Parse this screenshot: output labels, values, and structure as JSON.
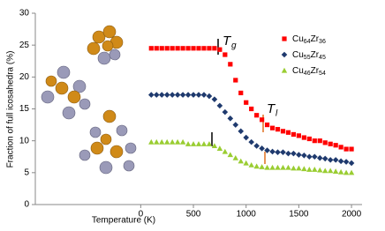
{
  "chart_data": {
    "type": "scatter",
    "xlabel": "Temperature (K)",
    "ylabel": "Fraction of full icosahedra (%)",
    "xlim": [
      -1000,
      2100
    ],
    "ylim": [
      0,
      30
    ],
    "xticks": [
      0,
      500,
      1000,
      1500,
      2000
    ],
    "yticks": [
      0,
      5,
      10,
      15,
      20,
      25,
      30
    ],
    "annotations": [
      {
        "text": "T",
        "sub": "g"
      },
      {
        "text": "T",
        "sub": "l"
      }
    ],
    "x": [
      100,
      150,
      200,
      250,
      300,
      350,
      400,
      450,
      500,
      550,
      600,
      650,
      700,
      750,
      800,
      850,
      900,
      950,
      1000,
      1050,
      1100,
      1150,
      1200,
      1250,
      1300,
      1350,
      1400,
      1450,
      1500,
      1550,
      1600,
      1650,
      1700,
      1750,
      1800,
      1850,
      1900,
      1950,
      2000
    ],
    "series": [
      {
        "name": "Cu64Zr36",
        "color": "#ff0000",
        "marker": "square",
        "values": [
          24.5,
          24.5,
          24.5,
          24.5,
          24.5,
          24.5,
          24.5,
          24.5,
          24.5,
          24.5,
          24.5,
          24.5,
          24.5,
          24.3,
          23.5,
          22,
          19.5,
          17.5,
          16,
          15,
          14,
          13.3,
          12.5,
          12,
          11.8,
          11.5,
          11.3,
          11,
          10.8,
          10.5,
          10.3,
          10,
          10,
          9.7,
          9.5,
          9.3,
          9,
          8.7,
          8.7
        ]
      },
      {
        "name": "Cu55Zr45",
        "color": "#1f3a6e",
        "marker": "diamond",
        "values": [
          17.2,
          17.2,
          17.2,
          17.2,
          17.2,
          17.2,
          17.2,
          17.2,
          17.2,
          17.2,
          17.2,
          17,
          16.5,
          15.5,
          14.5,
          13.5,
          12.5,
          11.5,
          10.5,
          9.8,
          9.2,
          8.8,
          8.5,
          8.3,
          8.2,
          8.2,
          8,
          8,
          7.8,
          7.7,
          7.5,
          7.5,
          7.3,
          7.2,
          7,
          7,
          6.8,
          6.7,
          6.5
        ]
      },
      {
        "name": "Cu46Zr54",
        "color": "#9acd32",
        "marker": "triangle",
        "values": [
          9.8,
          9.8,
          9.8,
          9.8,
          9.8,
          9.8,
          9.8,
          9.5,
          9.5,
          9.5,
          9.5,
          9.5,
          9.2,
          8.8,
          8.3,
          7.8,
          7.3,
          6.8,
          6.5,
          6.2,
          6,
          5.9,
          5.8,
          5.8,
          5.8,
          5.8,
          5.8,
          5.7,
          5.7,
          5.6,
          5.5,
          5.5,
          5.4,
          5.3,
          5.3,
          5.2,
          5.1,
          5,
          5
        ]
      }
    ]
  }
}
